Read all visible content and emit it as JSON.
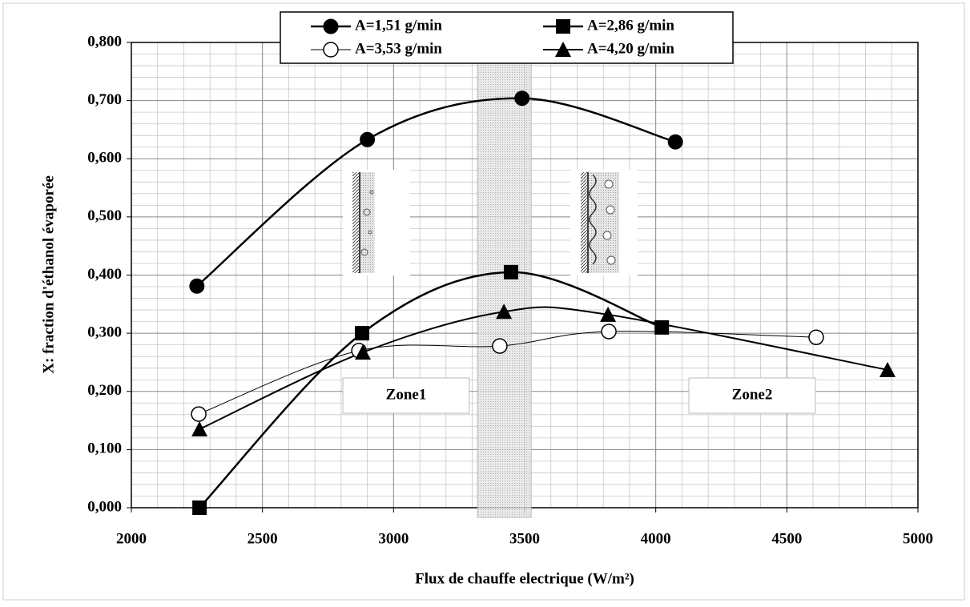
{
  "chart_data": {
    "type": "scatter",
    "y_label": "X: fraction d'éthanol évaporée",
    "x_label": "Flux de chauffe electrique (W/m²)",
    "xlim": [
      2000,
      5000
    ],
    "xticks": [
      2000,
      2500,
      3000,
      3500,
      4000,
      4500,
      5000
    ],
    "ylim": [
      0,
      0.8
    ],
    "yticks": [
      {
        "value": 0,
        "label": "0,000"
      },
      {
        "value": 0.1,
        "label": "0,100"
      },
      {
        "value": 0.2,
        "label": "0,200"
      },
      {
        "value": 0.3,
        "label": "0,300"
      },
      {
        "value": 0.4,
        "label": "0,400"
      },
      {
        "value": 0.5,
        "label": "0,500"
      },
      {
        "value": 0.6,
        "label": "0,600"
      },
      {
        "value": 0.7,
        "label": "0,700"
      },
      {
        "value": 0.8,
        "label": "0,800"
      }
    ],
    "grid": true,
    "legend": "top",
    "shaded_band": [
      3320,
      3525
    ],
    "annotations": [
      "Zone1",
      "Zone2"
    ],
    "series": [
      {
        "name": "A=1,51 g/min",
        "color": "#000000",
        "marker": "circle",
        "line_width": 2.5,
        "x": [
          2250,
          2900,
          3490,
          4075
        ],
        "values": [
          0.381,
          0.633,
          0.704,
          0.629
        ]
      },
      {
        "name": "A=2,86 g/min",
        "color": "#000000",
        "marker": "square",
        "line_width": 2.5,
        "x": [
          2260,
          2880,
          3448,
          4023
        ],
        "values": [
          0,
          0.3,
          0.405,
          0.31
        ]
      },
      {
        "name": "A=3,53 g/min",
        "color": "#000000",
        "marker": "circle-open",
        "line_width": 1,
        "x": [
          2257,
          2868,
          3405,
          3821,
          4612
        ],
        "values": [
          0.161,
          0.27,
          0.278,
          0.303,
          0.293
        ]
      },
      {
        "name": "A=4,20 g/min",
        "color": "#000000",
        "marker": "triangle",
        "line_width": 2,
        "x": [
          2260,
          2883,
          3421,
          3818,
          4884
        ],
        "values": [
          0.135,
          0.267,
          0.337,
          0.332,
          0.237
        ]
      }
    ]
  }
}
